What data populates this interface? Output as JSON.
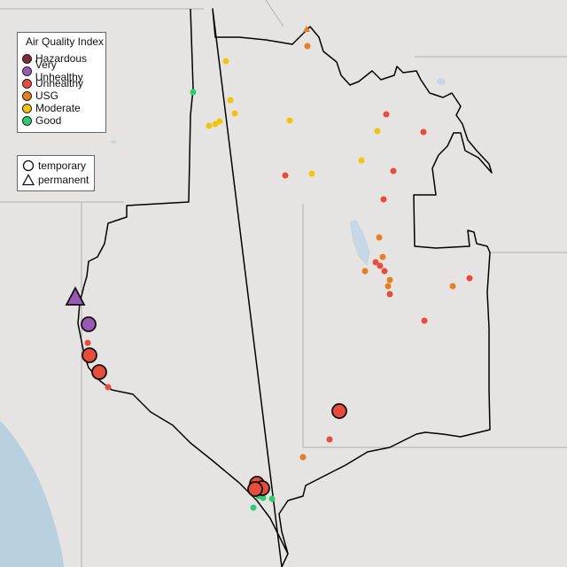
{
  "legend": {
    "title": "Air Quality Index",
    "categories": [
      {
        "label": "Hazardous",
        "color": "#7e2b36"
      },
      {
        "label": "Very Unhealthy",
        "color": "#9b59b6"
      },
      {
        "label": "Unhealthy",
        "color": "#e74c3c"
      },
      {
        "label": "USG",
        "color": "#e67e22"
      },
      {
        "label": "Moderate",
        "color": "#f1c40f"
      },
      {
        "label": "Good",
        "color": "#2ecc71"
      }
    ],
    "types": [
      {
        "label": "temporary",
        "icon": "circle-outline-icon"
      },
      {
        "label": "permanent",
        "icon": "triangle-outline-icon"
      }
    ]
  },
  "sensors": [
    {
      "category": "Very Unhealthy",
      "type": "permanent",
      "prominent": true
    },
    {
      "category": "Very Unhealthy",
      "type": "temporary",
      "prominent": true
    },
    {
      "category": "Unhealthy",
      "type": "temporary",
      "prominent": true
    },
    {
      "category": "Unhealthy",
      "type": "temporary",
      "prominent": true
    },
    {
      "category": "Unhealthy",
      "type": "temporary",
      "prominent": true
    },
    {
      "category": "Unhealthy",
      "type": "temporary",
      "prominent": true
    },
    {
      "category": "Unhealthy",
      "type": "temporary",
      "prominent": true
    },
    {
      "category": "Unhealthy",
      "type": "temporary",
      "prominent": true
    }
  ]
}
